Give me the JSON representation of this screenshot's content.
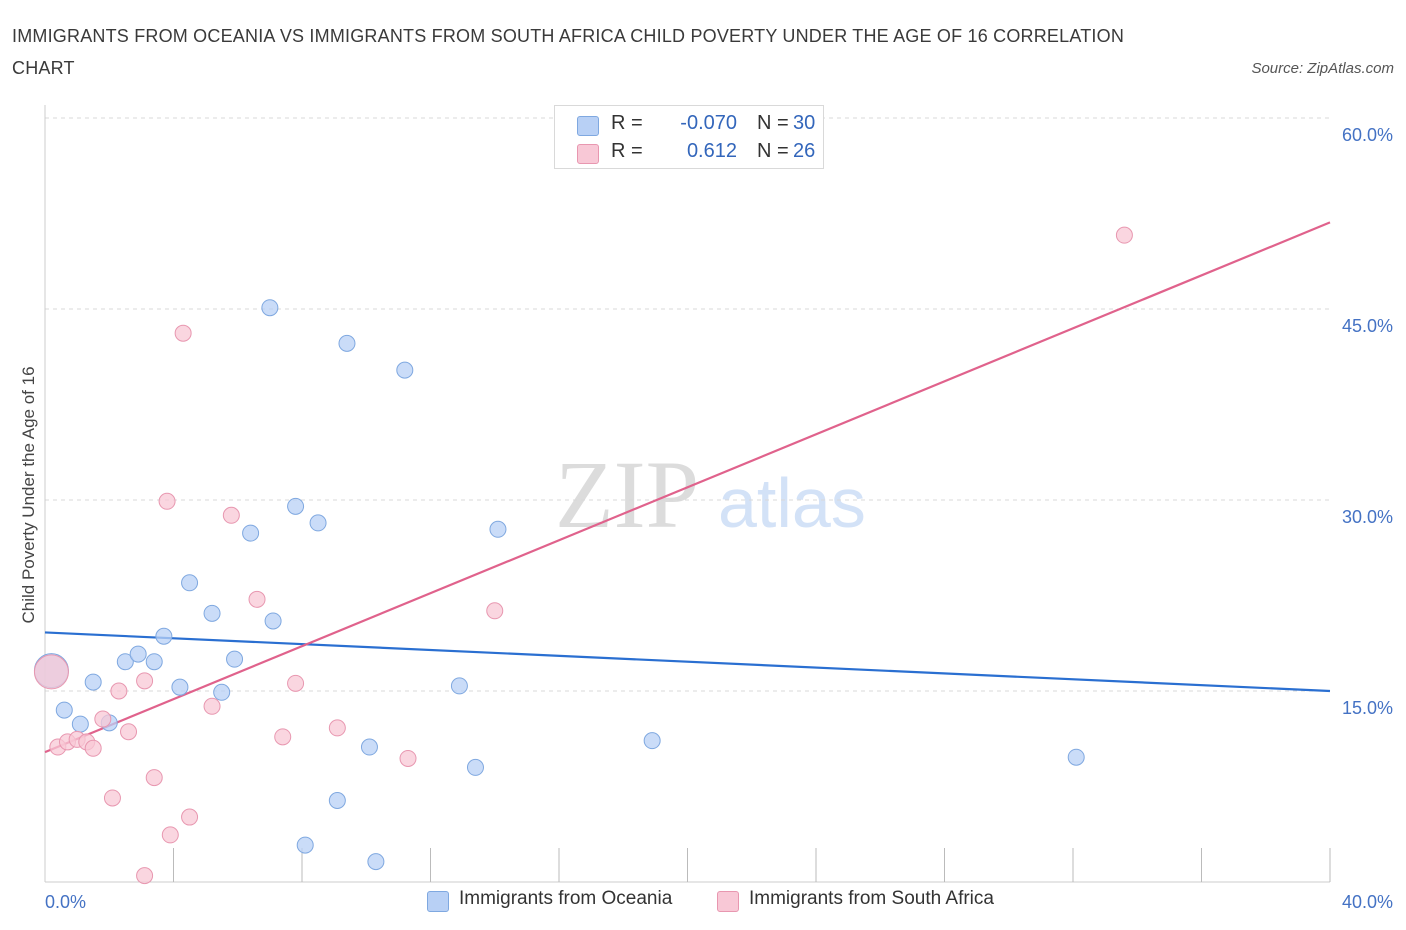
{
  "title": "IMMIGRANTS FROM OCEANIA VS IMMIGRANTS FROM SOUTH AFRICA CHILD POVERTY UNDER THE AGE OF 16 CORRELATION CHART",
  "source": "Source: ZipAtlas.com",
  "watermark": {
    "zip": "ZIP",
    "atlas": "atlas"
  },
  "colors": {
    "blue_fill": "#b8d0f5",
    "blue_stroke": "#7fa8e0",
    "blue_line": "#2a6fd1",
    "pink_fill": "#f8c8d6",
    "pink_stroke": "#e897b0",
    "pink_line": "#e0628c",
    "tick_text": "#4472c4",
    "grid": "#d8d8d8"
  },
  "legend": {
    "rows": [
      {
        "r_label": "R =",
        "r_value": "-0.070",
        "n_label": "N =",
        "n_value": "30"
      },
      {
        "r_label": "R =",
        "r_value": "0.612",
        "n_label": "N =",
        "n_value": "26"
      }
    ]
  },
  "bottom_legend": {
    "series1": "Immigrants from Oceania",
    "series2": "Immigrants from South Africa"
  },
  "chart_data": {
    "type": "scatter",
    "title": "IMMIGRANTS FROM OCEANIA VS IMMIGRANTS FROM SOUTH AFRICA CHILD POVERTY UNDER THE AGE OF 16 CORRELATION CHART",
    "xlabel": "",
    "ylabel": "Child Poverty Under the Age of 16",
    "xlim": [
      0,
      40
    ],
    "ylim": [
      0,
      60
    ],
    "x_tick_labels": [
      "0.0%",
      "40.0%"
    ],
    "y_ticks": [
      15,
      30,
      45,
      60
    ],
    "y_tick_labels": [
      "15.0%",
      "30.0%",
      "45.0%",
      "60.0%"
    ],
    "grid": true,
    "series": [
      {
        "name": "Immigrants from Oceania",
        "r": -0.07,
        "n": 30,
        "trend": {
          "x": [
            0,
            40
          ],
          "y": [
            19.6,
            15.0
          ]
        },
        "points": [
          {
            "x": 0.2,
            "y": 16.6,
            "big": true
          },
          {
            "x": 0.6,
            "y": 13.5
          },
          {
            "x": 1.1,
            "y": 12.4
          },
          {
            "x": 1.5,
            "y": 15.7
          },
          {
            "x": 2.0,
            "y": 12.5
          },
          {
            "x": 2.5,
            "y": 17.3
          },
          {
            "x": 2.9,
            "y": 17.9
          },
          {
            "x": 3.4,
            "y": 17.3
          },
          {
            "x": 3.7,
            "y": 19.3
          },
          {
            "x": 4.2,
            "y": 15.3
          },
          {
            "x": 4.5,
            "y": 23.5
          },
          {
            "x": 5.2,
            "y": 21.1
          },
          {
            "x": 5.5,
            "y": 14.9
          },
          {
            "x": 5.9,
            "y": 17.5
          },
          {
            "x": 6.4,
            "y": 27.4
          },
          {
            "x": 7.0,
            "y": 45.1
          },
          {
            "x": 7.1,
            "y": 20.5
          },
          {
            "x": 7.8,
            "y": 29.5
          },
          {
            "x": 8.1,
            "y": 2.9
          },
          {
            "x": 8.5,
            "y": 28.2
          },
          {
            "x": 9.1,
            "y": 6.4
          },
          {
            "x": 9.4,
            "y": 42.3
          },
          {
            "x": 10.1,
            "y": 10.6
          },
          {
            "x": 10.3,
            "y": 1.6
          },
          {
            "x": 11.2,
            "y": 40.2
          },
          {
            "x": 12.9,
            "y": 15.4
          },
          {
            "x": 13.4,
            "y": 9.0
          },
          {
            "x": 14.1,
            "y": 27.7
          },
          {
            "x": 18.9,
            "y": 11.1
          },
          {
            "x": 32.1,
            "y": 9.8
          }
        ]
      },
      {
        "name": "Immigrants from South Africa",
        "r": 0.612,
        "n": 26,
        "trend": {
          "x": [
            0,
            40
          ],
          "y": [
            10.2,
            51.8
          ]
        },
        "points": [
          {
            "x": 0.2,
            "y": 16.5,
            "big": true
          },
          {
            "x": 0.4,
            "y": 10.6
          },
          {
            "x": 0.7,
            "y": 11.0
          },
          {
            "x": 1.0,
            "y": 11.2
          },
          {
            "x": 1.3,
            "y": 11.0
          },
          {
            "x": 1.5,
            "y": 10.5
          },
          {
            "x": 1.8,
            "y": 12.8
          },
          {
            "x": 2.1,
            "y": 6.6
          },
          {
            "x": 2.3,
            "y": 15.0
          },
          {
            "x": 2.6,
            "y": 11.8
          },
          {
            "x": 3.1,
            "y": 15.8
          },
          {
            "x": 3.4,
            "y": 8.2
          },
          {
            "x": 3.8,
            "y": 29.9
          },
          {
            "x": 3.9,
            "y": 3.7
          },
          {
            "x": 4.3,
            "y": 43.1
          },
          {
            "x": 4.5,
            "y": 5.1
          },
          {
            "x": 5.2,
            "y": 13.8
          },
          {
            "x": 5.8,
            "y": 28.8
          },
          {
            "x": 6.6,
            "y": 22.2
          },
          {
            "x": 7.4,
            "y": 11.4
          },
          {
            "x": 7.8,
            "y": 15.6
          },
          {
            "x": 9.1,
            "y": 12.1
          },
          {
            "x": 11.3,
            "y": 9.7
          },
          {
            "x": 14.0,
            "y": 21.3
          },
          {
            "x": 33.6,
            "y": 50.8
          },
          {
            "x": 3.1,
            "y": 0.5
          }
        ]
      }
    ]
  }
}
